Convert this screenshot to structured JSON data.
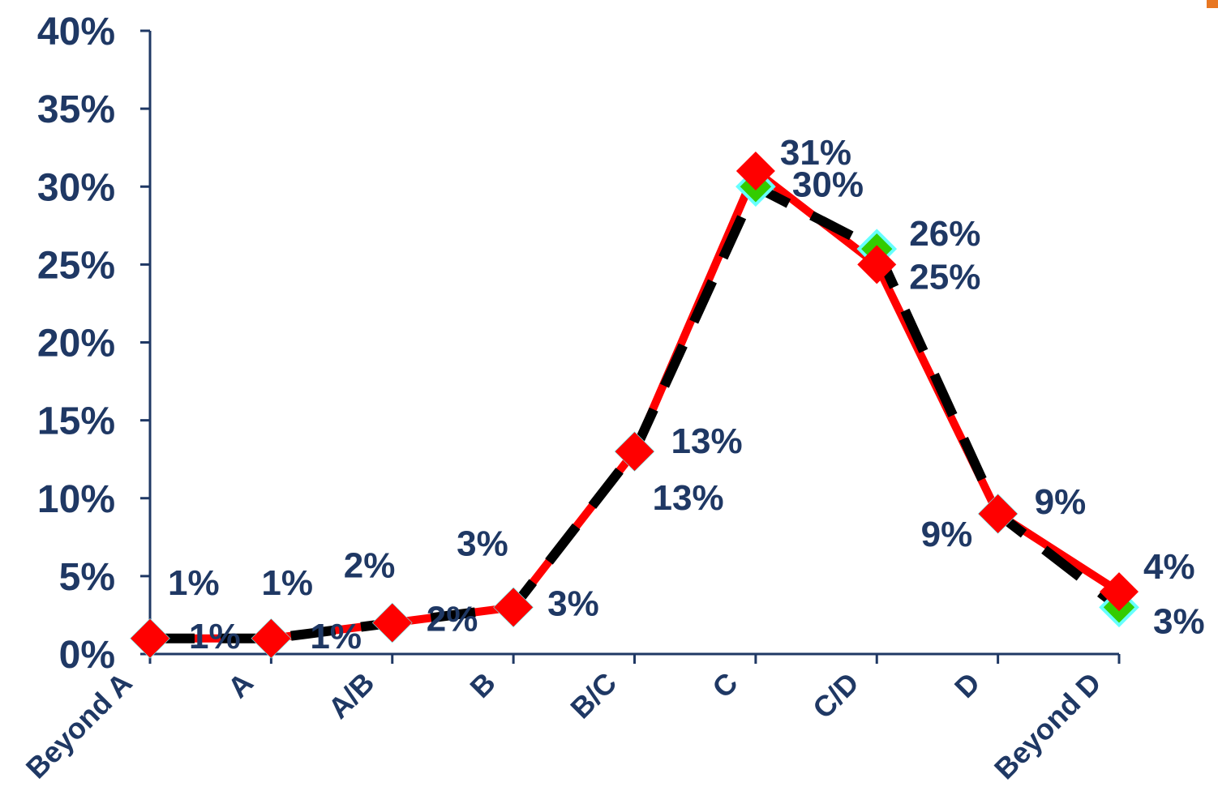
{
  "chart_data": {
    "type": "line",
    "title": "",
    "xlabel": "",
    "ylabel": "",
    "categories": [
      "Beyond A",
      "A",
      "A/B",
      "B",
      "B/C",
      "C",
      "C/D",
      "D",
      "Beyond D"
    ],
    "ylim": [
      0,
      40
    ],
    "yticks": [
      0,
      5,
      10,
      15,
      20,
      25,
      30,
      35,
      40
    ],
    "ytick_labels": [
      "0%",
      "5%",
      "10%",
      "15%",
      "20%",
      "25%",
      "30%",
      "35%",
      "40%"
    ],
    "grid": false,
    "legend": "none",
    "series": [
      {
        "style": "dashed-black",
        "color": "#000000",
        "marker_color": "#33CC00",
        "marker_outline": "#66FFFF",
        "values": [
          1,
          1,
          2,
          3,
          13,
          30,
          26,
          9,
          3
        ],
        "labels": [
          "1%",
          "1%",
          "2%",
          "3%",
          "13%",
          "30%",
          "26%",
          "9%",
          "3%"
        ]
      },
      {
        "style": "solid-red",
        "color": "#FF0000",
        "marker_color": "#FF0000",
        "values": [
          1,
          1,
          2,
          3,
          13,
          31,
          25,
          9,
          4
        ],
        "labels": [
          "1%",
          "1%",
          "2%",
          "3%",
          "13%",
          "31%",
          "25%",
          "9%",
          "4%"
        ]
      }
    ],
    "axis_label_color": "#1F3864"
  }
}
